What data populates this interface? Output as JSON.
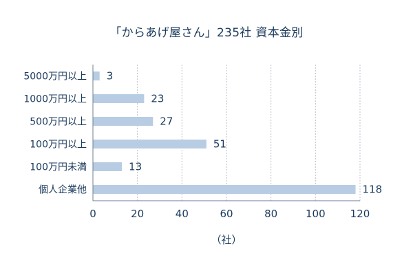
{
  "chart_data": {
    "type": "bar",
    "orientation": "horizontal",
    "title": "「からあげ屋さん」235社 資本金別",
    "xlabel": "（社）",
    "ylabel": "",
    "categories": [
      "5000万円以上",
      "1000万円以上",
      "500万円以上",
      "100万円以上",
      "100万円未満",
      "個人企業他"
    ],
    "values": [
      3,
      23,
      27,
      51,
      13,
      118
    ],
    "xlim": [
      0,
      120
    ],
    "xticks": [
      0,
      20,
      40,
      60,
      80,
      100,
      120
    ],
    "grid": true,
    "legend": "none",
    "data_labels": true
  },
  "colors": {
    "bar": "#b8cde3",
    "text": "#1a3a5c",
    "axis": "#6d7f92",
    "grid": "#b9c2cc"
  }
}
